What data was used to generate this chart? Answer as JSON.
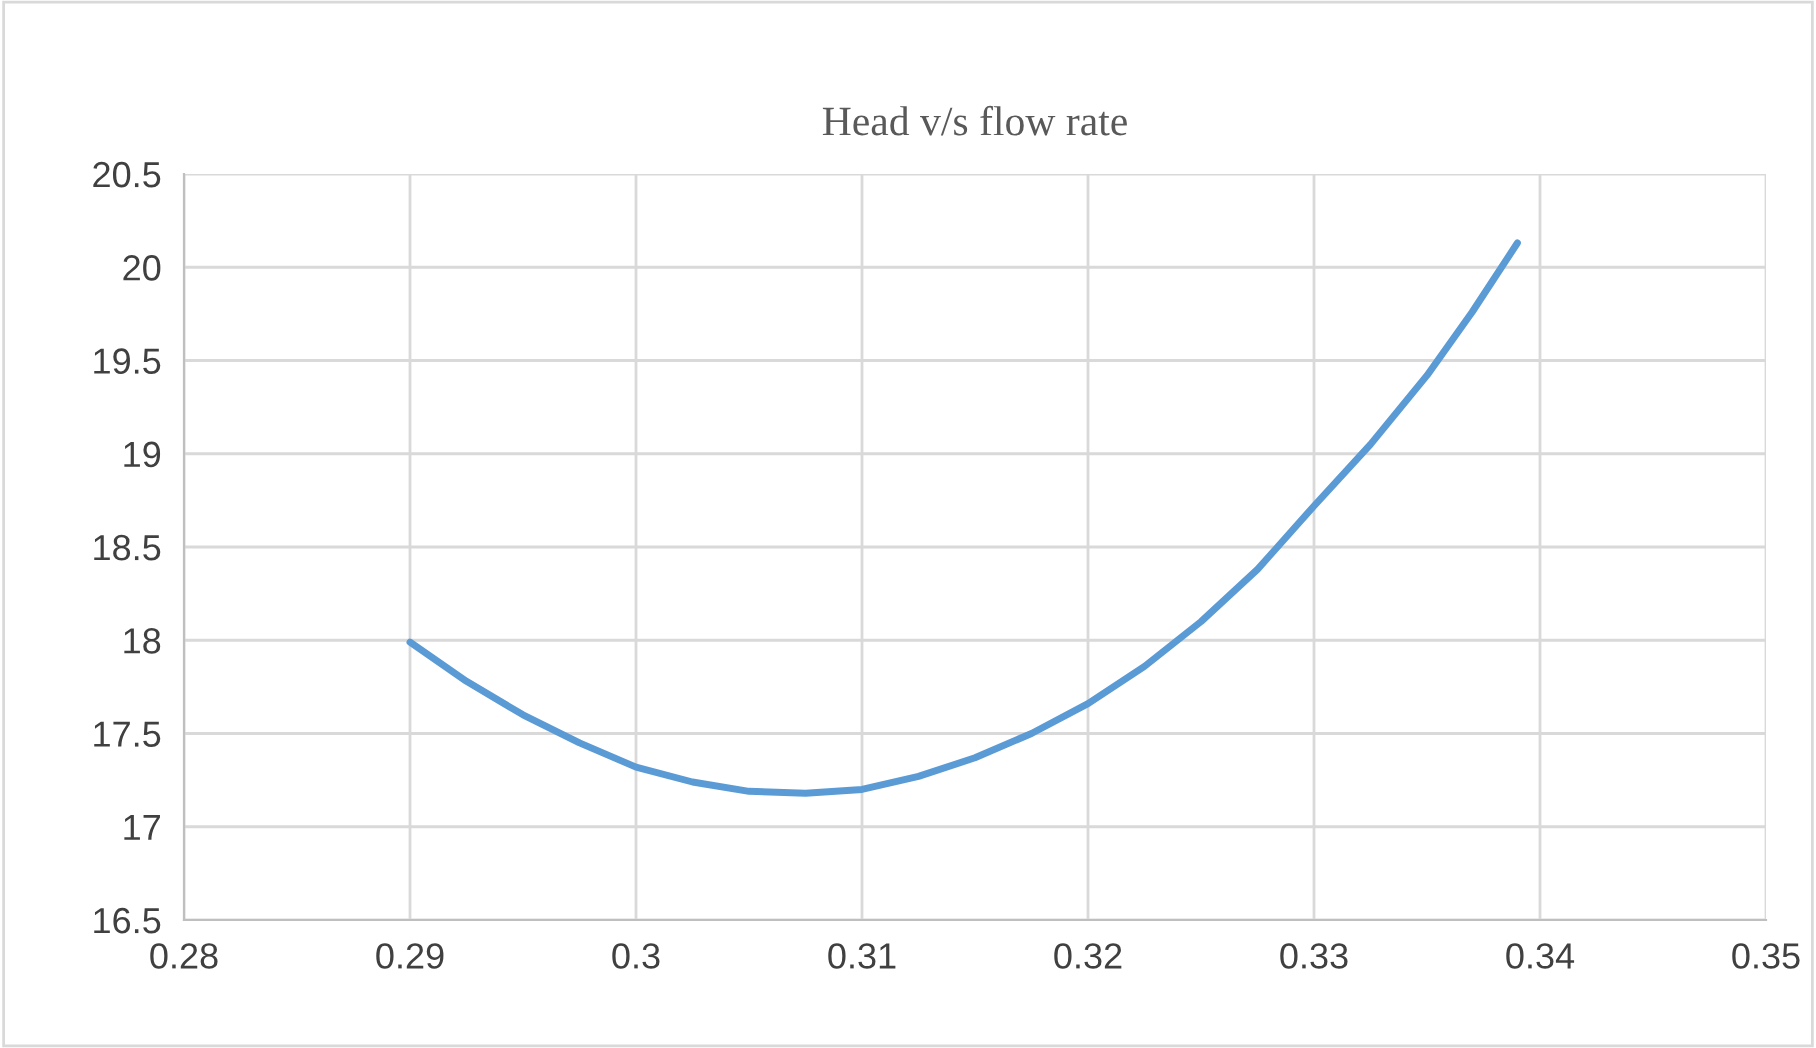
{
  "chart_data": {
    "type": "line",
    "title": "Head v/s flow rate",
    "series": [
      {
        "color": "#5b9bd5",
        "x": [
          0.29,
          0.2925,
          0.295,
          0.2975,
          0.3,
          0.3025,
          0.305,
          0.3075,
          0.31,
          0.3125,
          0.315,
          0.3175,
          0.32,
          0.3225,
          0.325,
          0.3275,
          0.33,
          0.3325,
          0.335,
          0.337,
          0.339
        ],
        "values": [
          17.99,
          17.78,
          17.6,
          17.45,
          17.32,
          17.24,
          17.19,
          17.18,
          17.2,
          17.27,
          17.37,
          17.5,
          17.66,
          17.86,
          18.1,
          18.38,
          18.72,
          19.05,
          19.42,
          19.76,
          20.13
        ]
      }
    ],
    "xlim": [
      0.28,
      0.35
    ],
    "xticks": [
      0.28,
      0.29,
      0.3,
      0.31,
      0.32,
      0.33,
      0.34,
      0.35
    ],
    "ylim": [
      16.5,
      20.5
    ],
    "yticks": [
      16.5,
      17,
      17.5,
      18,
      18.5,
      19,
      19.5,
      20,
      20.5
    ],
    "grid": true,
    "marker": "none",
    "line_style": "solid"
  }
}
